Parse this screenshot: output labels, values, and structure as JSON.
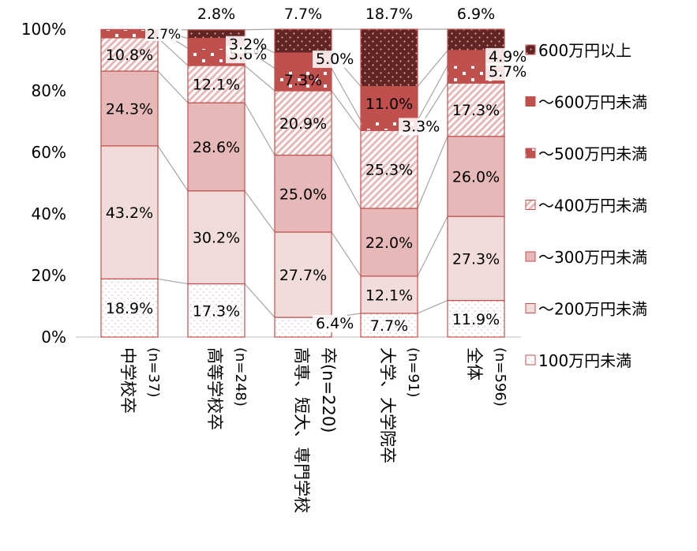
{
  "chart_data": {
    "type": "bar",
    "stacked": true,
    "categories": [
      "中学校卒\n(n=37)",
      "高等学校卒\n(n=248)",
      "高専、短大、専門学校\n卒(n=220)",
      "大学、大学院卒\n(n=91)",
      "全体\n(n=596)"
    ],
    "category_lines": [
      [
        "中学校卒",
        "(n=37)"
      ],
      [
        "高等学校卒",
        "(n=248)"
      ],
      [
        "高専、短大、専門学校",
        "卒(n=220)"
      ],
      [
        "大学、大学院卒",
        "(n=91)"
      ],
      [
        "全体",
        "(n=596)"
      ]
    ],
    "series": [
      {
        "name": "100万円未満",
        "values": [
          18.9,
          17.3,
          6.4,
          7.7,
          11.9
        ],
        "labels": [
          "18.9%",
          "17.3%",
          "6.4%",
          "7.7%",
          "11.9%"
        ],
        "color": "#ffffff",
        "pattern": "dots-light"
      },
      {
        "name": "～200万円未満",
        "values": [
          43.2,
          30.2,
          27.7,
          12.1,
          27.3
        ],
        "labels": [
          "43.2%",
          "30.2%",
          "27.7%",
          "12.1%",
          "27.3%"
        ],
        "color": "#f2dcdb",
        "pattern": "solid"
      },
      {
        "name": "～300万円未満",
        "values": [
          24.3,
          28.6,
          25.0,
          22.0,
          26.0
        ],
        "labels": [
          "24.3%",
          "28.6%",
          "25.0%",
          "22.0%",
          "26.0%"
        ],
        "color": "#e6b9b8",
        "pattern": "solid"
      },
      {
        "name": "～400万円未満",
        "values": [
          10.8,
          12.1,
          20.9,
          25.3,
          17.3
        ],
        "labels": [
          "10.8%",
          "12.1%",
          "20.9%",
          "25.3%",
          "17.3%"
        ],
        "color": "#e6b9b8",
        "pattern": "diagonal"
      },
      {
        "name": "～500万円未満",
        "values": [
          2.7,
          5.6,
          7.3,
          3.3,
          5.7
        ],
        "labels": [
          "",
          "5.6%",
          "7.3%",
          "3.3%",
          "5.7%"
        ],
        "color": "#c0504d",
        "pattern": "white-squares"
      },
      {
        "name": "～600万円未満",
        "values": [
          0,
          3.2,
          5.0,
          11.0,
          4.9
        ],
        "labels": [
          "",
          "3.2%",
          "5.0%",
          "11.0%",
          "4.9%"
        ],
        "color": "#c0504d",
        "pattern": "solid"
      },
      {
        "name": "600万円以上",
        "values": [
          0,
          2.8,
          7.7,
          18.7,
          6.9
        ],
        "labels": [
          "",
          "",
          "",
          "",
          ""
        ],
        "color": "#632523",
        "pattern": "dots-dark"
      }
    ],
    "top_labels": [
      "",
      "2.8%",
      "7.7%",
      "18.7%",
      "6.9%"
    ],
    "extra_labels": [
      "2.7%"
    ],
    "y_ticks": [
      "0%",
      "20%",
      "40%",
      "60%",
      "80%",
      "100%"
    ],
    "ylim": [
      0,
      100
    ],
    "legend_position": "right",
    "legend_order": [
      "600万円以上",
      "～600万円未満",
      "～500万円未満",
      "～400万円未満",
      "～300万円未満",
      "～200万円未満",
      "100万円未満"
    ],
    "series_lines": true
  }
}
